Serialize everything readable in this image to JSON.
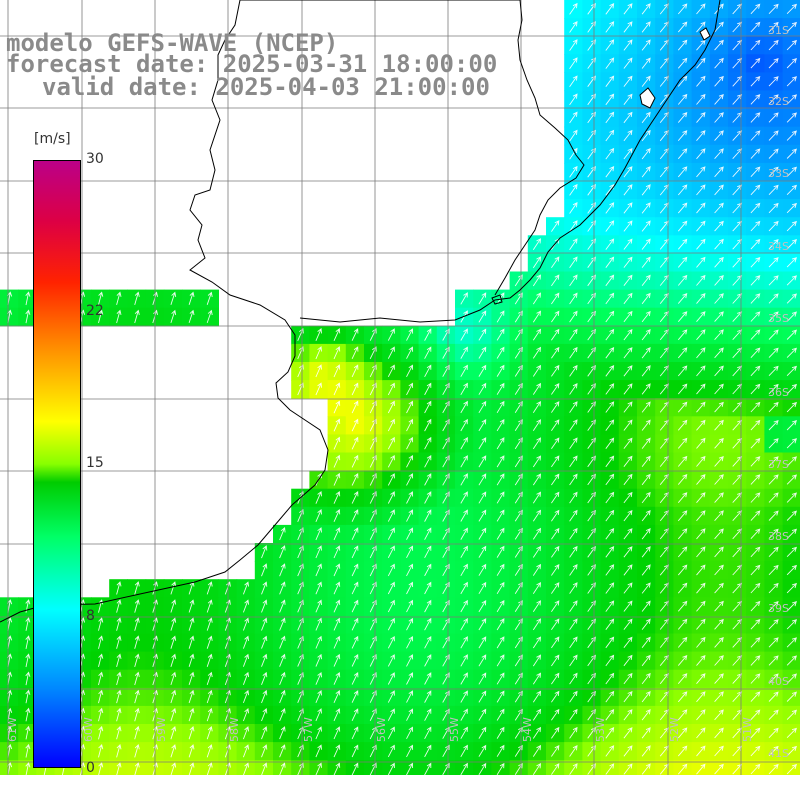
{
  "title": {
    "model": "modelo GEFS-WAVE (NCEP)",
    "forecast": "forecast date: 2025-03-31 18:00:00",
    "valid": "valid date: 2025-04-03 21:00:00"
  },
  "colorbar": {
    "unit": "[m/s]",
    "min": 0,
    "max": 30,
    "tick_labels": [
      "30",
      "22",
      "15",
      "8",
      "0"
    ],
    "tick_values": [
      30,
      22,
      15,
      8,
      0
    ],
    "colors": [
      "#0000ff",
      "#0088ff",
      "#00ffff",
      "#00ff66",
      "#00cc00",
      "#88ff00",
      "#ffff00",
      "#ff9900",
      "#ff2200",
      "#dd0044",
      "#bb0088"
    ]
  },
  "axes": {
    "lat_labels": [
      "31S",
      "32S",
      "33S",
      "34S",
      "35S",
      "36S",
      "37S",
      "38S",
      "39S",
      "40S",
      "41S"
    ],
    "lon_labels": [
      "61W",
      "60W",
      "59W",
      "58W",
      "57W",
      "56W",
      "55W",
      "54W",
      "53W",
      "52W",
      "51W"
    ]
  },
  "map": {
    "land_color": "#ffffff",
    "coast_color": "#000000",
    "grid_color": "#808080"
  }
}
